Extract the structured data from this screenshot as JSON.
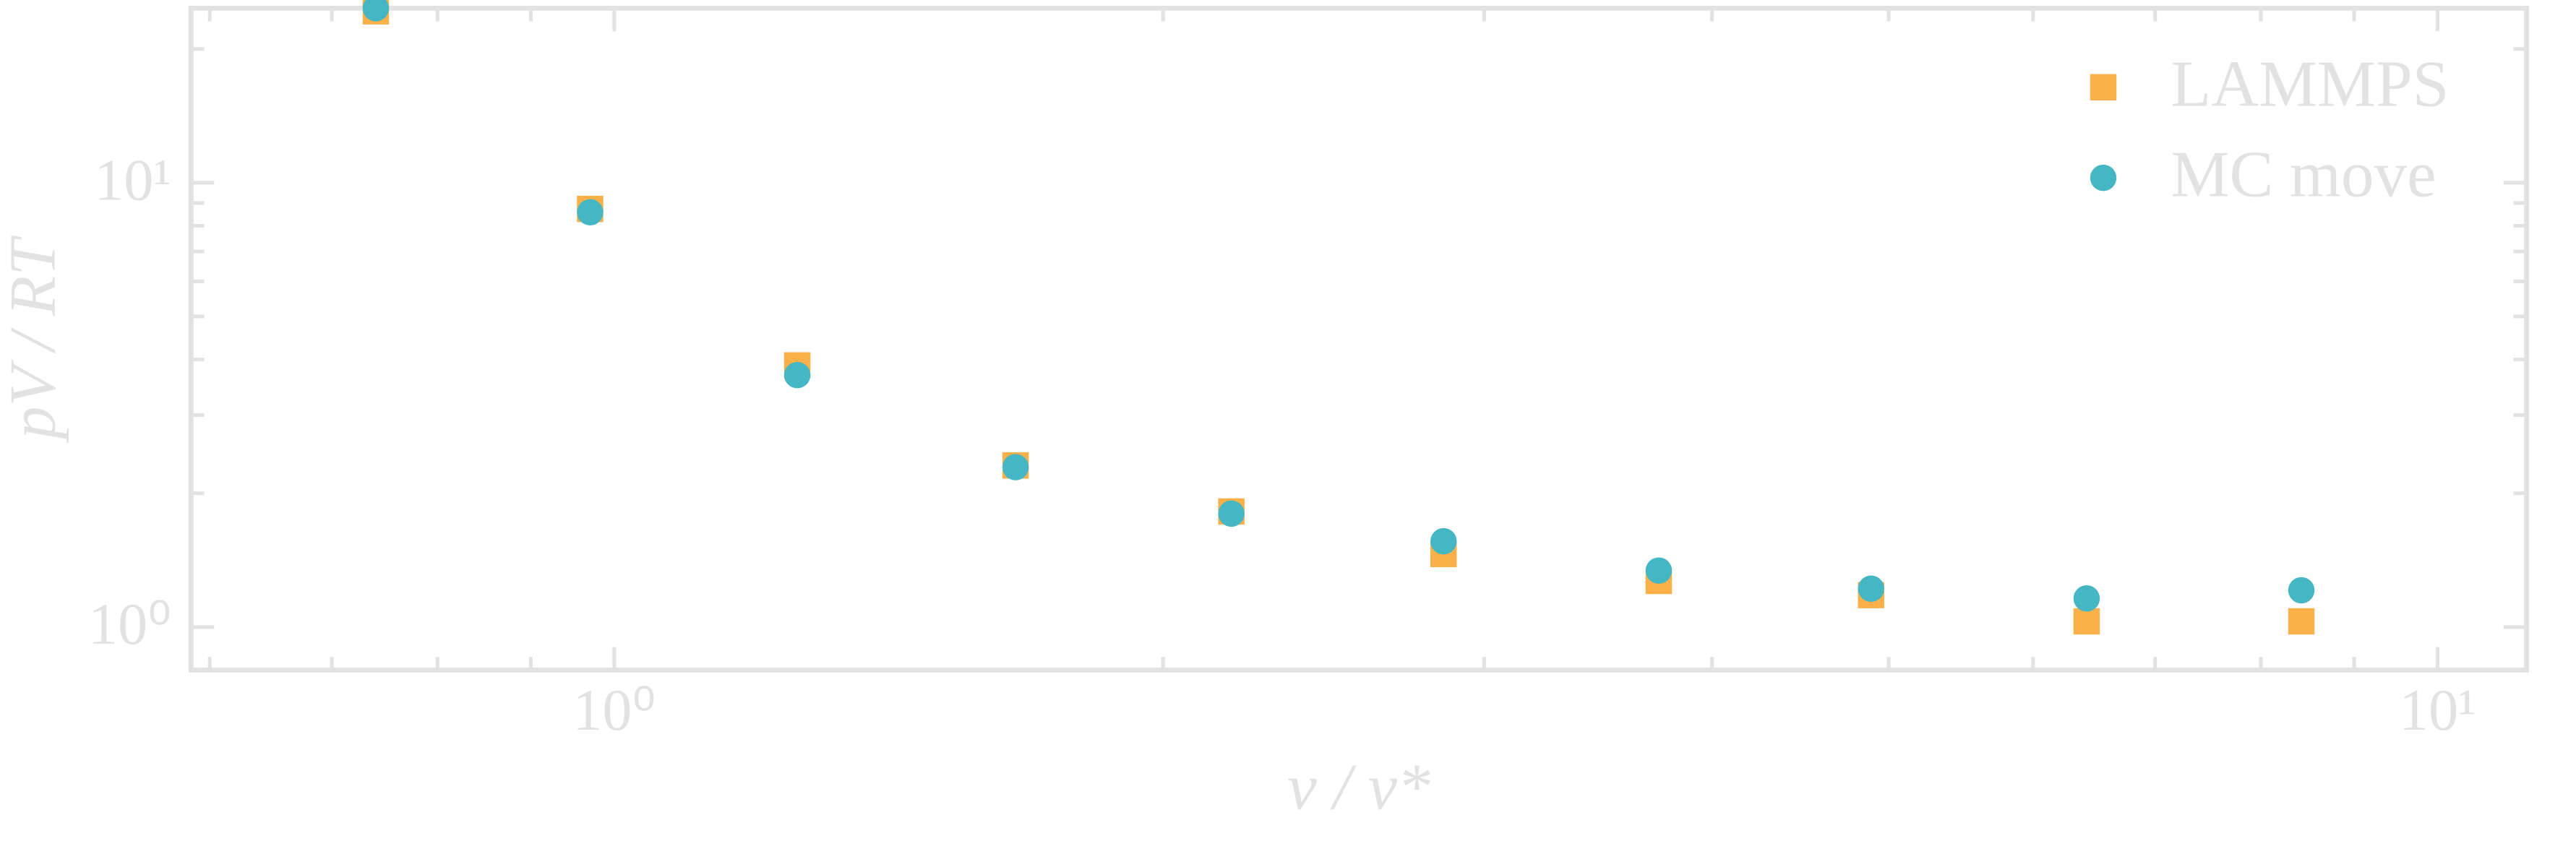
{
  "chart_data": {
    "type": "scatter",
    "x_label": "v / v*",
    "y_label": "pV / RT",
    "xlog": true,
    "ylog": true,
    "xlim": [
      0.586,
      11.19
    ],
    "ylim": [
      0.8,
      24.7
    ],
    "xticks": [
      {
        "value": 1,
        "label": "10⁰"
      },
      {
        "value": 10,
        "label": "10¹"
      }
    ],
    "yticks": [
      {
        "value": 1,
        "label": "10⁰"
      },
      {
        "value": 10,
        "label": "10¹"
      }
    ],
    "xminorticks": [
      0.6,
      0.7,
      0.8,
      0.9,
      2,
      3,
      4,
      5,
      6,
      7,
      8,
      9
    ],
    "yminorticks": [
      2,
      3,
      4,
      5,
      6,
      7,
      8,
      9,
      20
    ],
    "legend_position": "upper right",
    "x": [
      0.74,
      0.97,
      1.26,
      1.66,
      2.18,
      2.85,
      3.74,
      4.89,
      6.42,
      8.42
    ],
    "series": [
      {
        "name": "LAMMPS",
        "color": "#fbb04a",
        "marker": "square",
        "values": [
          24.3,
          8.73,
          3.88,
          2.31,
          1.82,
          1.46,
          1.27,
          1.18,
          1.03,
          1.03
        ]
      },
      {
        "name": "MC move",
        "color": "#45b6c3",
        "marker": "circle",
        "values": [
          24.7,
          8.58,
          3.69,
          2.29,
          1.8,
          1.56,
          1.34,
          1.22,
          1.16,
          1.21
        ]
      }
    ]
  }
}
